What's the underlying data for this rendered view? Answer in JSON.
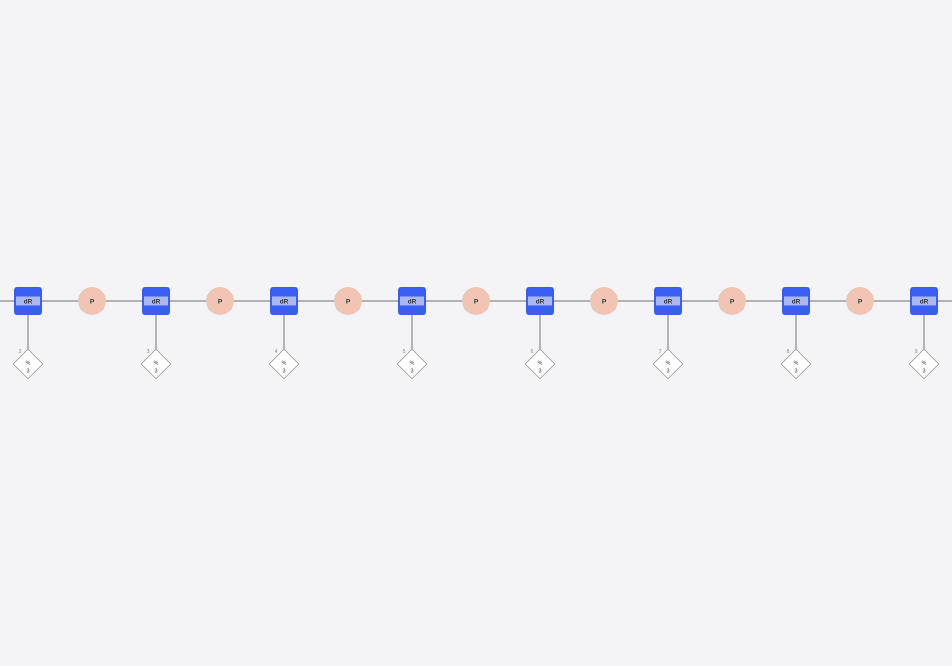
{
  "sugar_label": "dR",
  "phosphate_label": "P",
  "base_top_label": "%",
  "base_bottom_label": "3",
  "nucleotides": [
    {
      "index": "2"
    },
    {
      "index": "3"
    },
    {
      "index": "4"
    },
    {
      "index": "5"
    },
    {
      "index": "6"
    },
    {
      "index": "7"
    },
    {
      "index": "8"
    },
    {
      "index": "9"
    }
  ],
  "colors": {
    "background": "#f4f4f6",
    "backbone_line": "#8a8a8a",
    "sugar_fill": "#3a5ef5",
    "sugar_band": "#aab6f2",
    "phosphate_fill": "#f2c4b4",
    "base_fill": "#ffffff",
    "base_stroke": "#9a9a9a",
    "label_text": "#333333"
  }
}
